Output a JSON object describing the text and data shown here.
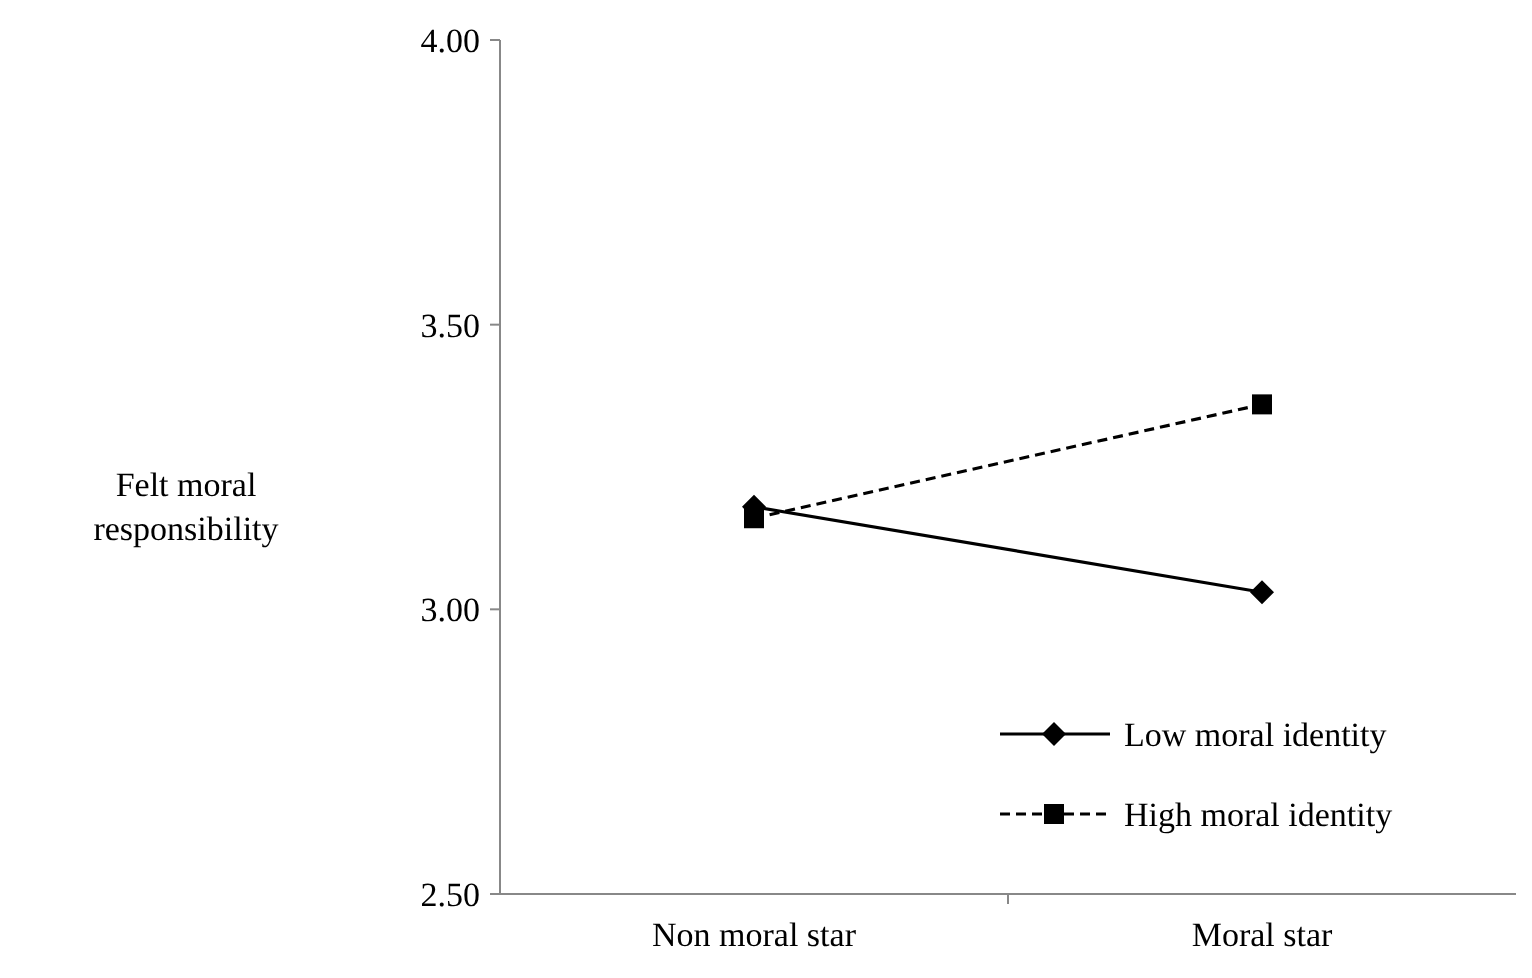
{
  "chart_data": {
    "type": "line",
    "ylabel": "Felt moral responsibility",
    "categories": [
      "Non moral star",
      "Moral star"
    ],
    "series": [
      {
        "name": "Low moral identity",
        "color": "#000000",
        "values": [
          3.18,
          3.03
        ],
        "marker": "diamond",
        "line_style": "solid"
      },
      {
        "name": "High moral identity",
        "color": "#000000",
        "values": [
          3.16,
          3.36
        ],
        "marker": "square",
        "line_style": "dashed"
      }
    ],
    "ylim": [
      2.5,
      4
    ],
    "yticks": [
      {
        "value": 2.5,
        "label": "2.50"
      },
      {
        "value": 3,
        "label": "3.00"
      },
      {
        "value": 3.5,
        "label": "3.50"
      },
      {
        "value": 4,
        "label": "4.00"
      }
    ],
    "grid": false,
    "legend": "bottom right"
  }
}
